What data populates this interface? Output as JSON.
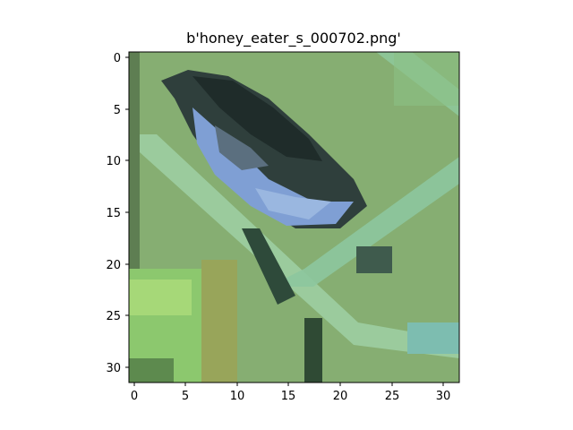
{
  "title": "b'honey_eater_s_000702.png'",
  "image": {
    "description_colors": {
      "background": "#86ae72",
      "bird_dark": "#1f2c2a",
      "bird_blue": "#7f9fd4",
      "branch": "#9fd0a4",
      "leaf_light": "#a6d878"
    }
  },
  "axes": {
    "x_ticks": [
      "0",
      "5",
      "10",
      "15",
      "20",
      "25",
      "30"
    ],
    "y_ticks": [
      "0",
      "5",
      "10",
      "15",
      "20",
      "25",
      "30"
    ],
    "xlim": [
      -0.5,
      31.5
    ],
    "ylim": [
      31.5,
      -0.5
    ]
  }
}
